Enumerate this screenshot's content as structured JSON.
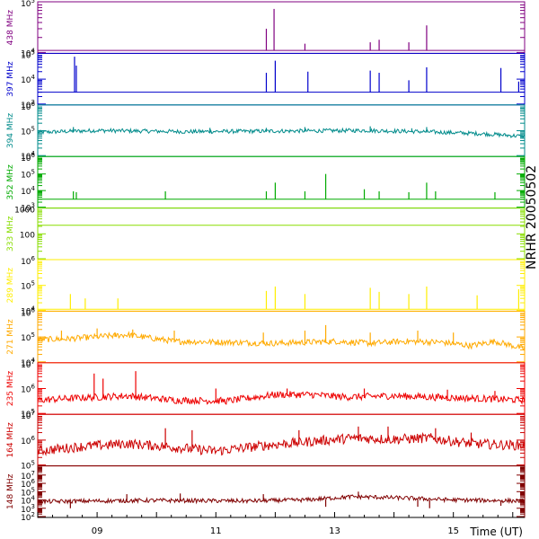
{
  "chart_data": {
    "type": "line",
    "title": "NRHR 20050502",
    "xlabel": "Time (UT)",
    "x_ticks": [
      "09",
      "11",
      "13",
      "15"
    ],
    "x_tick_hours": [
      9,
      11,
      13,
      15
    ],
    "xlim": [
      8.0,
      16.2
    ],
    "panels": [
      {
        "name": "438 MHz",
        "color": "#800080",
        "log": true,
        "ylim": [
          10000,
          100000
        ],
        "tick_labels": [
          {
            "base": "10",
            "exp": "5",
            "v": 100000
          },
          {
            "base": "10",
            "exp": "4",
            "v": 10000
          }
        ],
        "baseline": 11000,
        "noise": 0.0,
        "spikes": [
          [
            11.85,
            30000
          ],
          [
            11.98,
            75000
          ],
          [
            12.5,
            15000
          ],
          [
            13.6,
            16000
          ],
          [
            13.75,
            18000
          ],
          [
            14.25,
            16000
          ],
          [
            14.55,
            35000
          ]
        ]
      },
      {
        "name": "397 MHz",
        "color": "#0000cc",
        "log": true,
        "ylim": [
          1000,
          100000
        ],
        "tick_labels": [
          {
            "base": "10",
            "exp": "5",
            "v": 100000
          },
          {
            "base": "10",
            "exp": "4",
            "v": 10000
          },
          {
            "base": "10",
            "exp": "3",
            "v": 1000
          }
        ],
        "baseline": 3000,
        "noise": 0.0,
        "spikes": [
          [
            8.62,
            80000
          ],
          [
            8.65,
            35000
          ],
          [
            11.85,
            18000
          ],
          [
            12.0,
            55000
          ],
          [
            12.55,
            20000
          ],
          [
            13.6,
            22000
          ],
          [
            13.75,
            18000
          ],
          [
            14.25,
            9000
          ],
          [
            14.55,
            30000
          ],
          [
            15.8,
            28000
          ],
          [
            16.1,
            8000
          ]
        ]
      },
      {
        "name": "394 MHz",
        "color": "#008b8b",
        "log": true,
        "ylim": [
          10000,
          1000000
        ],
        "tick_labels": [
          {
            "base": "10",
            "exp": "6",
            "v": 1000000
          },
          {
            "base": "10",
            "exp": "5",
            "v": 100000
          },
          {
            "base": "10",
            "exp": "4",
            "v": 10000
          }
        ],
        "baseline": 90000,
        "noise": 0.08,
        "level_points": [
          [
            8.0,
            80000
          ],
          [
            9.0,
            95000
          ],
          [
            10.5,
            85000
          ],
          [
            12.0,
            90000
          ],
          [
            13.5,
            95000
          ],
          [
            14.5,
            85000
          ],
          [
            15.5,
            70000
          ],
          [
            16.2,
            55000
          ]
        ],
        "spikes": [
          [
            8.6,
            140000
          ],
          [
            10.9,
            130000
          ],
          [
            11.85,
            130000
          ],
          [
            12.5,
            140000
          ],
          [
            13.6,
            150000
          ],
          [
            14.3,
            125000
          ],
          [
            14.55,
            140000
          ]
        ]
      },
      {
        "name": "352 MHz",
        "color": "#00aa00",
        "log": true,
        "ylim": [
          1000,
          1000000
        ],
        "tick_labels": [
          {
            "base": "10",
            "exp": "6",
            "v": 1000000
          },
          {
            "base": "10",
            "exp": "5",
            "v": 100000
          },
          {
            "base": "10",
            "exp": "4",
            "v": 10000
          },
          {
            "base": "10",
            "exp": "3",
            "v": 1000
          }
        ],
        "baseline": 3000,
        "noise": 0.0,
        "spikes": [
          [
            8.6,
            9000
          ],
          [
            8.65,
            8000
          ],
          [
            10.15,
            9000
          ],
          [
            11.85,
            9000
          ],
          [
            12.0,
            30000
          ],
          [
            12.5,
            9000
          ],
          [
            12.85,
            100000
          ],
          [
            13.5,
            12000
          ],
          [
            13.75,
            9000
          ],
          [
            14.25,
            8000
          ],
          [
            14.55,
            30000
          ],
          [
            14.7,
            9000
          ],
          [
            15.7,
            8000
          ]
        ]
      },
      {
        "name": "333 MHz",
        "color": "#88dd00",
        "log": true,
        "ylim": [
          10,
          1000
        ],
        "tick_labels": [
          {
            "base": "1000",
            "exp": "",
            "v": 1000
          },
          {
            "base": "100",
            "exp": "",
            "v": 100
          }
        ],
        "baseline": 220,
        "noise": 0.0,
        "spikes": []
      },
      {
        "name": "289 MHz",
        "color": "#ffee00",
        "log": true,
        "ylim": [
          10000,
          1000000
        ],
        "tick_labels": [
          {
            "base": "10",
            "exp": "6",
            "v": 1000000
          },
          {
            "base": "10",
            "exp": "5",
            "v": 100000
          },
          {
            "base": "10",
            "exp": "4",
            "v": 10000
          }
        ],
        "baseline": 11000,
        "noise": 0.0,
        "spikes": [
          [
            8.55,
            45000
          ],
          [
            8.8,
            30000
          ],
          [
            9.35,
            30000
          ],
          [
            11.85,
            60000
          ],
          [
            12.0,
            90000
          ],
          [
            12.5,
            45000
          ],
          [
            13.6,
            80000
          ],
          [
            13.75,
            55000
          ],
          [
            14.25,
            45000
          ],
          [
            14.55,
            90000
          ],
          [
            15.4,
            40000
          ],
          [
            16.1,
            70000
          ]
        ]
      },
      {
        "name": "271 MHz",
        "color": "#ffaa00",
        "log": true,
        "ylim": [
          10000,
          1000000
        ],
        "tick_labels": [
          {
            "base": "10",
            "exp": "6",
            "v": 1000000
          },
          {
            "base": "10",
            "exp": "5",
            "v": 100000
          },
          {
            "base": "10",
            "exp": "4",
            "v": 10000
          }
        ],
        "baseline": 70000,
        "noise": 0.12,
        "level_points": [
          [
            8.0,
            70000
          ],
          [
            8.5,
            75000
          ],
          [
            9.5,
            110000
          ],
          [
            10.3,
            60000
          ],
          [
            11.2,
            55000
          ],
          [
            12.0,
            50000
          ],
          [
            13.0,
            60000
          ],
          [
            13.6,
            50000
          ],
          [
            14.2,
            60000
          ],
          [
            14.8,
            55000
          ],
          [
            15.3,
            40000
          ],
          [
            15.7,
            60000
          ],
          [
            16.2,
            30000
          ]
        ],
        "spikes": [
          [
            8.4,
            180000
          ],
          [
            9.0,
            220000
          ],
          [
            9.3,
            150000
          ],
          [
            9.6,
            200000
          ],
          [
            10.3,
            180000
          ],
          [
            11.8,
            150000
          ],
          [
            12.5,
            180000
          ],
          [
            12.85,
            300000
          ],
          [
            13.6,
            150000
          ],
          [
            14.4,
            180000
          ],
          [
            15.0,
            150000
          ]
        ]
      },
      {
        "name": "235 MHz",
        "color": "#ee0000",
        "log": true,
        "ylim": [
          100000,
          10000000
        ],
        "tick_labels": [
          {
            "base": "10",
            "exp": "7",
            "v": 10000000
          },
          {
            "base": "10",
            "exp": "6",
            "v": 1000000
          },
          {
            "base": "10",
            "exp": "5",
            "v": 100000
          }
        ],
        "baseline": 300000,
        "noise": 0.14,
        "level_points": [
          [
            8.0,
            300000
          ],
          [
            8.5,
            350000
          ],
          [
            9.5,
            450000
          ],
          [
            10.3,
            300000
          ],
          [
            11.2,
            280000
          ],
          [
            12.0,
            500000
          ],
          [
            12.6,
            500000
          ],
          [
            13.2,
            400000
          ],
          [
            14.0,
            450000
          ],
          [
            14.6,
            400000
          ],
          [
            15.4,
            350000
          ],
          [
            16.2,
            300000
          ]
        ],
        "spikes": [
          [
            8.95,
            4000000
          ],
          [
            9.1,
            2500000
          ],
          [
            9.65,
            5000000
          ],
          [
            11.0,
            1000000
          ],
          [
            12.2,
            1000000
          ],
          [
            13.5,
            1000000
          ],
          [
            14.9,
            900000
          ],
          [
            15.7,
            800000
          ]
        ]
      },
      {
        "name": "164 MHz",
        "color": "#cc0000",
        "log": true,
        "ylim": [
          100000,
          10000000
        ],
        "tick_labels": [
          {
            "base": "10",
            "exp": "7",
            "v": 10000000
          },
          {
            "base": "10",
            "exp": "6",
            "v": 1000000
          },
          {
            "base": "10",
            "exp": "5",
            "v": 100000
          }
        ],
        "baseline": 400000,
        "noise": 0.2,
        "level_points": [
          [
            8.0,
            300000
          ],
          [
            8.7,
            450000
          ],
          [
            9.5,
            600000
          ],
          [
            10.2,
            450000
          ],
          [
            11.0,
            300000
          ],
          [
            11.8,
            500000
          ],
          [
            12.5,
            700000
          ],
          [
            13.3,
            1000000
          ],
          [
            14.0,
            900000
          ],
          [
            14.6,
            1000000
          ],
          [
            15.3,
            600000
          ],
          [
            16.2,
            500000
          ]
        ],
        "spikes": [
          [
            10.15,
            3000000
          ],
          [
            10.6,
            2500000
          ],
          [
            12.4,
            2500000
          ],
          [
            13.4,
            3500000
          ],
          [
            13.9,
            3500000
          ],
          [
            14.7,
            3000000
          ],
          [
            15.3,
            2000000
          ]
        ]
      },
      {
        "name": "148 MHz",
        "color": "#800000",
        "log": true,
        "ylim": [
          100,
          100000000
        ],
        "tick_labels": [
          {
            "base": "10",
            "exp": "7",
            "v": 10000000
          },
          {
            "base": "10",
            "exp": "6",
            "v": 1000000
          },
          {
            "base": "10",
            "exp": "5",
            "v": 100000
          },
          {
            "base": "10",
            "exp": "4",
            "v": 10000
          },
          {
            "base": "10",
            "exp": "3",
            "v": 1000
          },
          {
            "base": "10",
            "exp": "2",
            "v": 100
          }
        ],
        "baseline": 6000,
        "noise": 0.25,
        "level_points": [
          [
            8.0,
            5000
          ],
          [
            9.0,
            6000
          ],
          [
            10.0,
            7000
          ],
          [
            11.5,
            6000
          ],
          [
            12.5,
            8000
          ],
          [
            13.3,
            20000
          ],
          [
            14.0,
            15000
          ],
          [
            15.0,
            8000
          ],
          [
            16.2,
            6000
          ]
        ],
        "spikes": [
          [
            8.55,
            1000
          ],
          [
            9.5,
            50000
          ],
          [
            10.4,
            60000
          ],
          [
            11.8,
            50000
          ],
          [
            12.85,
            1500
          ],
          [
            13.4,
            100000
          ],
          [
            14.4,
            1500
          ],
          [
            14.6,
            1000
          ],
          [
            15.8,
            2000
          ]
        ]
      }
    ]
  }
}
